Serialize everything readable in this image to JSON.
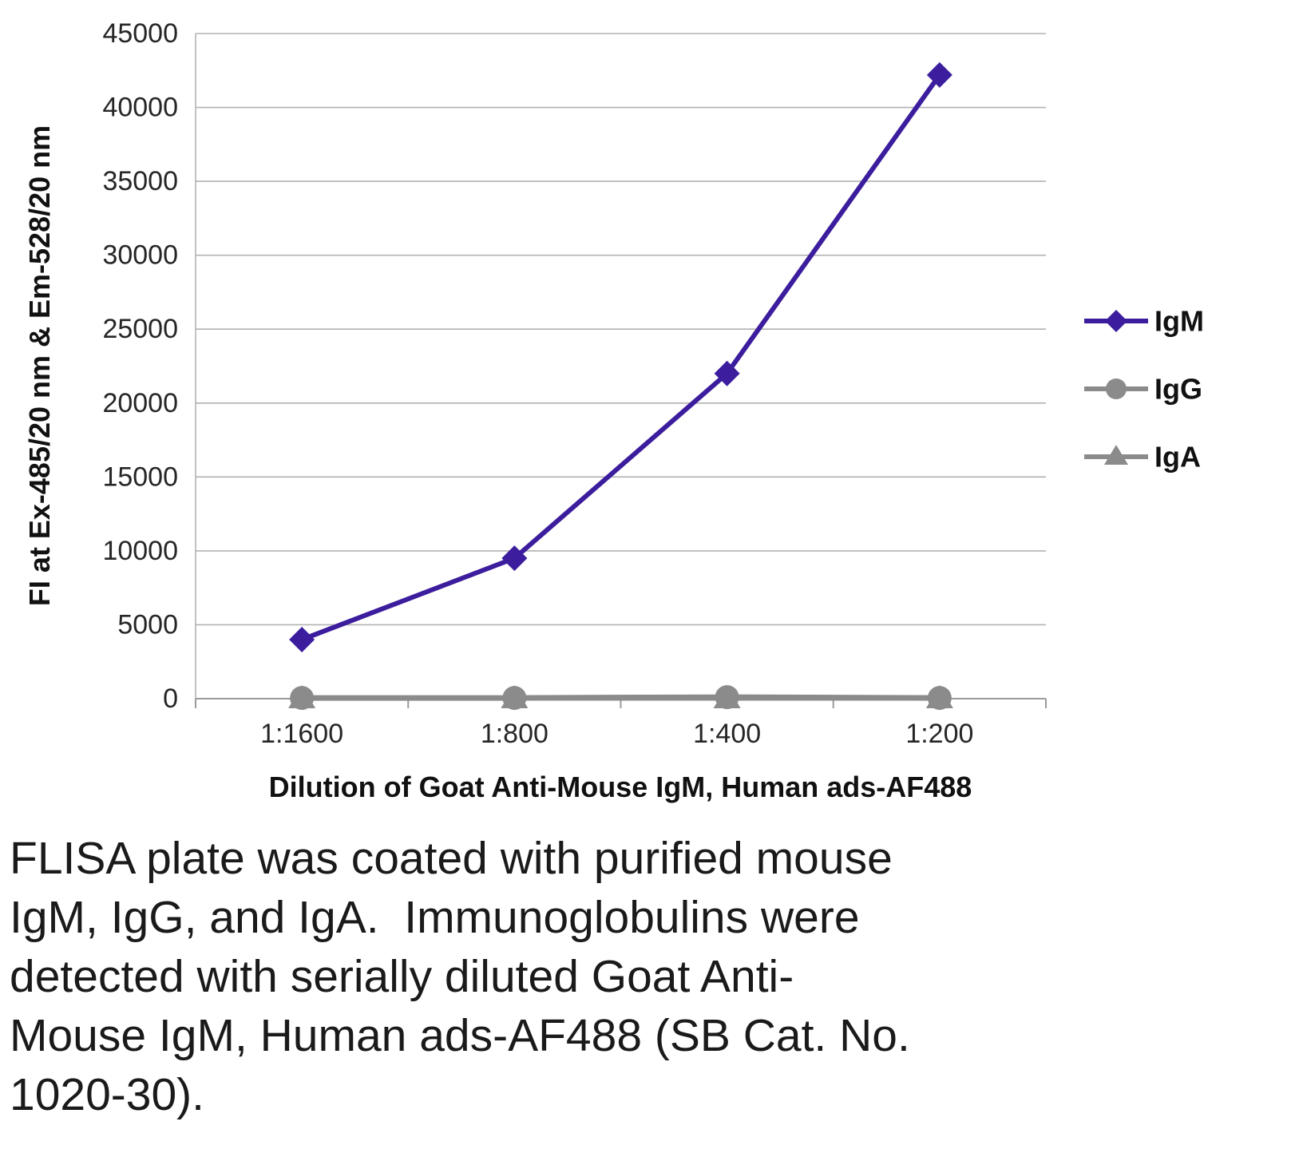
{
  "caption": "FLISA plate was coated with purified mouse\nIgM, IgG, and IgA.  Immunoglobulins were\ndetected with serially diluted Goat Anti-\nMouse IgM, Human ads-AF488 (SB Cat. No.\n1020-30).",
  "chart_data": {
    "type": "line",
    "categories": [
      "1:1600",
      "1:800",
      "1:400",
      "1:200"
    ],
    "series": [
      {
        "name": "IgM",
        "values": [
          4000,
          9500,
          22000,
          42200
        ],
        "color": "#3b1d9d",
        "marker": "diamond",
        "line_width": 6
      },
      {
        "name": "IgG",
        "values": [
          50,
          50,
          100,
          50
        ],
        "color": "#8b8b8b",
        "marker": "circle",
        "line_width": 7
      },
      {
        "name": "IgA",
        "values": [
          0,
          0,
          0,
          0
        ],
        "color": "#8b8b8b",
        "marker": "triangle",
        "line_width": 5
      }
    ],
    "xlabel": "Dilution of Goat Anti-Mouse IgM, Human ads-AF488",
    "ylabel": "FI at Ex-485/20 nm & Em-528/20 nm",
    "ylim": [
      0,
      45000
    ],
    "ytick_step": 5000,
    "grid": "horizontal",
    "legend_position": "right",
    "legend_entries": [
      "IgM",
      "IgG",
      "IgA"
    ],
    "colors": {
      "grid": "#b2b2b2",
      "axis": "#9a9a9a",
      "tick_text": "#262626"
    }
  }
}
